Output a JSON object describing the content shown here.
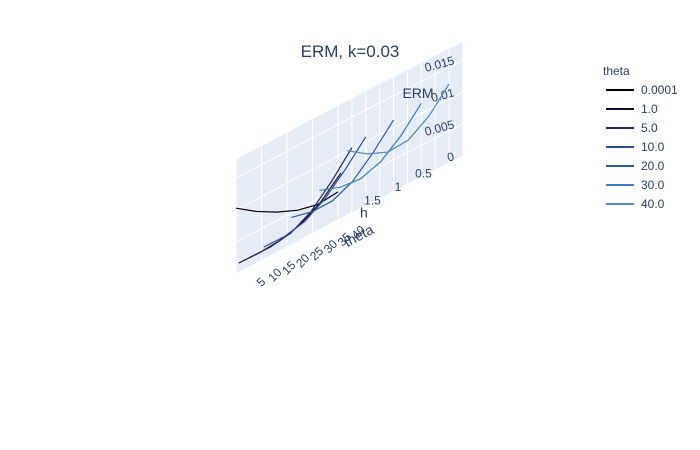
{
  "chart_data": {
    "type": "line",
    "title": "ERM, k=0.03",
    "xlabel": "theta",
    "ylabel": "h",
    "zlabel": "ERM",
    "xlim": [
      0,
      45
    ],
    "ylim": [
      0,
      2
    ],
    "zlim": [
      0,
      0.018
    ],
    "x_ticks": [
      "5",
      "10",
      "15",
      "20",
      "25",
      "30",
      "35",
      "40"
    ],
    "y_ticks": [
      "0.5",
      "1",
      "1.5"
    ],
    "z_ticks": [
      "0",
      "0.005",
      "0.01",
      "0.015"
    ],
    "legend": {
      "title": "theta",
      "placement": "right"
    },
    "series": [
      {
        "name": "0.0001",
        "color": "#000004",
        "theta": 0.0001,
        "h": [
          0,
          0.4,
          0.8,
          1.2,
          1.6,
          2.0
        ],
        "erm": [
          0.0044,
          0.0041,
          0.0049,
          0.0063,
          0.0081,
          0.0103
        ]
      },
      {
        "name": "1.0",
        "color": "#100c2f",
        "theta": 1.0,
        "h": [
          0,
          0.4,
          0.8,
          1.2,
          1.6,
          2.0
        ],
        "erm": [
          0.0071,
          0.0042,
          0.0024,
          0.0016,
          0.0014,
          0.0015
        ]
      },
      {
        "name": "5.0",
        "color": "#29235c",
        "theta": 5.0,
        "h": [
          0,
          0.4,
          0.8,
          1.2,
          1.6,
          2.0
        ],
        "erm": [
          0.0102,
          0.0066,
          0.0036,
          0.0019,
          0.0014,
          0.0015
        ]
      },
      {
        "name": "10.0",
        "color": "#2e4a91",
        "theta": 10.0,
        "h": [
          0,
          0.4,
          0.8,
          1.2,
          1.6,
          2.0
        ],
        "erm": [
          0.0108,
          0.0074,
          0.0045,
          0.0026,
          0.0019,
          0.002
        ]
      },
      {
        "name": "20.0",
        "color": "#2d5fa3",
        "theta": 20.0,
        "h": [
          0,
          0.4,
          0.8,
          1.2,
          1.6,
          2.0
        ],
        "erm": [
          0.0112,
          0.0078,
          0.005,
          0.0036,
          0.0036,
          0.0044
        ]
      },
      {
        "name": "30.0",
        "color": "#3a7cc2",
        "theta": 30.0,
        "h": [
          0,
          0.4,
          0.8,
          1.2,
          1.6,
          2.0
        ],
        "erm": [
          0.0116,
          0.0082,
          0.0058,
          0.0048,
          0.0052,
          0.0064
        ]
      },
      {
        "name": "40.0",
        "color": "#4a8ab8",
        "theta": 40.0,
        "h": [
          0,
          0.4,
          0.8,
          1.2,
          1.6,
          2.0
        ],
        "erm": [
          0.0124,
          0.009,
          0.007,
          0.0068,
          0.0082,
          0.0104
        ]
      }
    ]
  }
}
